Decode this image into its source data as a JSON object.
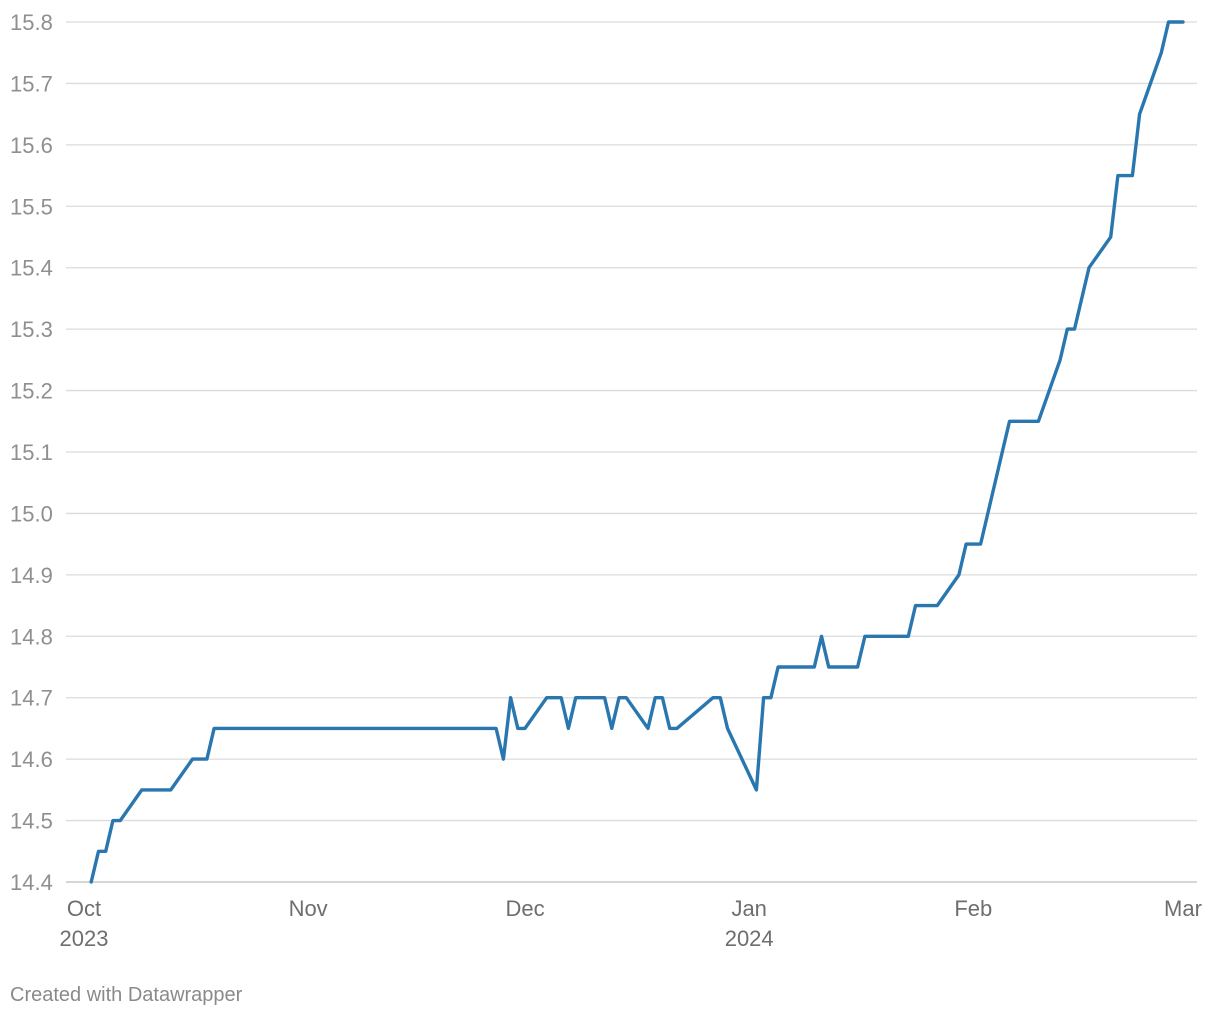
{
  "chart_data": {
    "type": "line",
    "title": "",
    "xlabel": "",
    "ylabel": "",
    "ylim": [
      14.4,
      15.8
    ],
    "yticks": [
      "14.4",
      "14.5",
      "14.6",
      "14.7",
      "14.8",
      "14.9",
      "15.0",
      "15.1",
      "15.2",
      "15.3",
      "15.4",
      "15.5",
      "15.6",
      "15.7",
      "15.8"
    ],
    "xticks": [
      {
        "date": "2023-10-01",
        "label": "Oct",
        "sublabel": "2023"
      },
      {
        "date": "2023-11-01",
        "label": "Nov",
        "sublabel": ""
      },
      {
        "date": "2023-12-01",
        "label": "Dec",
        "sublabel": ""
      },
      {
        "date": "2024-01-01",
        "label": "Jan",
        "sublabel": "2024"
      },
      {
        "date": "2024-02-01",
        "label": "Feb",
        "sublabel": ""
      },
      {
        "date": "2024-03-01",
        "label": "Mar",
        "sublabel": ""
      }
    ],
    "grid": true,
    "line_color": "#2a77b0",
    "series": [
      {
        "points": [
          [
            "2023-10-02",
            14.4
          ],
          [
            "2023-10-03",
            14.45
          ],
          [
            "2023-10-04",
            14.45
          ],
          [
            "2023-10-05",
            14.5
          ],
          [
            "2023-10-06",
            14.5
          ],
          [
            "2023-10-09",
            14.55
          ],
          [
            "2023-10-13",
            14.55
          ],
          [
            "2023-10-16",
            14.6
          ],
          [
            "2023-10-18",
            14.6
          ],
          [
            "2023-10-19",
            14.65
          ],
          [
            "2023-10-25",
            14.65
          ],
          [
            "2023-11-01",
            14.65
          ],
          [
            "2023-11-10",
            14.65
          ],
          [
            "2023-11-20",
            14.65
          ],
          [
            "2023-11-27",
            14.65
          ],
          [
            "2023-11-28",
            14.6
          ],
          [
            "2023-11-29",
            14.7
          ],
          [
            "2023-11-30",
            14.65
          ],
          [
            "2023-12-01",
            14.65
          ],
          [
            "2023-12-04",
            14.7
          ],
          [
            "2023-12-06",
            14.7
          ],
          [
            "2023-12-07",
            14.65
          ],
          [
            "2023-12-08",
            14.7
          ],
          [
            "2023-12-12",
            14.7
          ],
          [
            "2023-12-13",
            14.65
          ],
          [
            "2023-12-14",
            14.7
          ],
          [
            "2023-12-15",
            14.7
          ],
          [
            "2023-12-18",
            14.65
          ],
          [
            "2023-12-19",
            14.7
          ],
          [
            "2023-12-20",
            14.7
          ],
          [
            "2023-12-21",
            14.65
          ],
          [
            "2023-12-22",
            14.65
          ],
          [
            "2023-12-27",
            14.7
          ],
          [
            "2023-12-28",
            14.7
          ],
          [
            "2023-12-29",
            14.65
          ],
          [
            "2024-01-02",
            14.55
          ],
          [
            "2024-01-03",
            14.7
          ],
          [
            "2024-01-04",
            14.7
          ],
          [
            "2024-01-05",
            14.75
          ],
          [
            "2024-01-10",
            14.75
          ],
          [
            "2024-01-11",
            14.8
          ],
          [
            "2024-01-12",
            14.75
          ],
          [
            "2024-01-16",
            14.75
          ],
          [
            "2024-01-17",
            14.8
          ],
          [
            "2024-01-23",
            14.8
          ],
          [
            "2024-01-24",
            14.85
          ],
          [
            "2024-01-27",
            14.85
          ],
          [
            "2024-01-30",
            14.9
          ],
          [
            "2024-01-31",
            14.95
          ],
          [
            "2024-02-02",
            14.95
          ],
          [
            "2024-02-06",
            15.15
          ],
          [
            "2024-02-10",
            15.15
          ],
          [
            "2024-02-13",
            15.25
          ],
          [
            "2024-02-14",
            15.3
          ],
          [
            "2024-02-15",
            15.3
          ],
          [
            "2024-02-17",
            15.4
          ],
          [
            "2024-02-20",
            15.45
          ],
          [
            "2024-02-21",
            15.55
          ],
          [
            "2024-02-23",
            15.55
          ],
          [
            "2024-02-24",
            15.65
          ],
          [
            "2024-02-27",
            15.75
          ],
          [
            "2024-02-28",
            15.8
          ],
          [
            "2024-03-01",
            15.8
          ]
        ]
      }
    ]
  },
  "footer": {
    "credit": "Created with Datawrapper"
  }
}
